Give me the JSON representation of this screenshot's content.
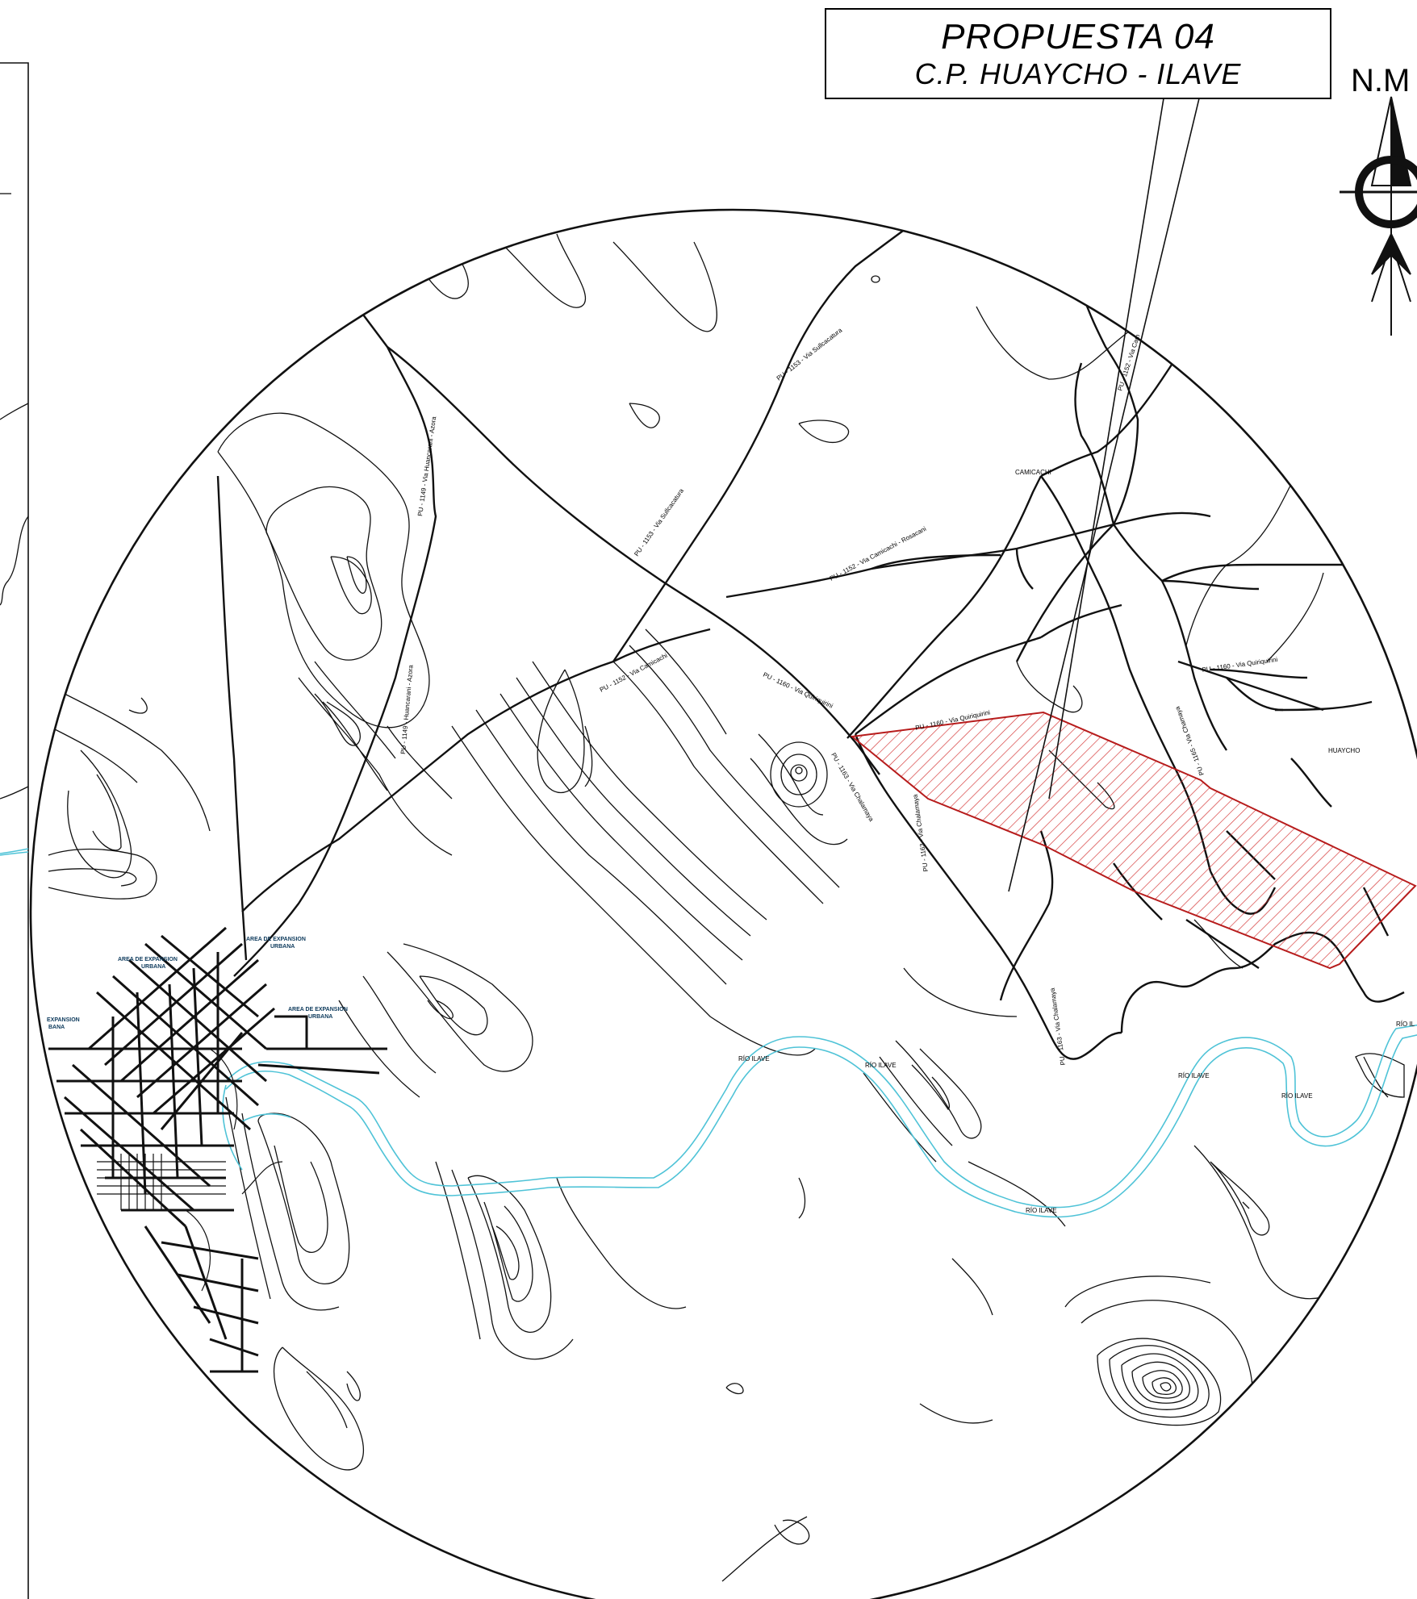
{
  "title": {
    "line1": "PROPUESTA 04",
    "line2": "C.P. HUAYCHO - ILAVE"
  },
  "north_arrow": {
    "label": "N.M",
    "icon": "north-arrow-icon"
  },
  "places": {
    "camicachi": "CAMICACHI",
    "huaycho": "HUAYCHO"
  },
  "roads": {
    "pu1153": "PU - 1153 - Via Sullcacatura",
    "pu1153b": "PU - 1153 - Via Sullcacatura",
    "pu1152": "PU - 1152 - Via Camicachi - Rosacani",
    "pu1152b": "PU - 1152 - Via Camicachi",
    "pu1152c": "PU - 1152 - Via Cam",
    "pu1149": "PU - 1149 - Via Huancarani - Azora",
    "pu1149b": "PU - 1149 - Huancarani - Azora",
    "pu1160a": "PU - 1160 - Via Quiriquirini",
    "pu1160b": "PU - 1160 - Via Quiriquirini",
    "pu1160c": "PU - 1160 - Via Quiriquirini",
    "pu1165": "PU - 1165 - Via Chamaya",
    "pu1163a": "PU - 1163 - Via Chalamaya",
    "pu1163b": "PU - 1163 - Via Chalamaya",
    "pu1163c": "PU - 1163 - Via Chalamaya"
  },
  "rivers": {
    "r1": "RÍO ILAVE",
    "r2": "RÍO ILAVE",
    "r3": "RÍO ILAVE",
    "r4": "RÍO ILAVE",
    "r5": "RÍO ILAVE",
    "r6": "RÍO IL"
  },
  "urban": {
    "exp1": "AREA DE EXPANSION",
    "exp1b": "URBANA",
    "exp2": "AREA DE EXPANSION",
    "exp2b": "URBANA",
    "exp3": "AREA DE EXPANSION",
    "exp3b": "URBANA",
    "exp4": "EXPANSION",
    "exp4b": "BANA"
  },
  "colors": {
    "proposal_hatch": "#d32f2f",
    "river": "#4fc3d7",
    "lines": "#111111"
  }
}
